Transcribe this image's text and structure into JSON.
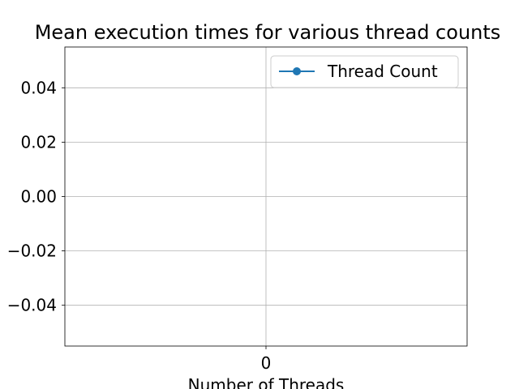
{
  "chart_data": {
    "type": "line",
    "title": "Mean execution times for various thread counts",
    "xlabel": "Number of Threads",
    "ylabel": "",
    "x_ticks": [
      "0"
    ],
    "y_ticks": [
      "0.04",
      "0.02",
      "0.00",
      "−0.02",
      "−0.04"
    ],
    "ylim": [
      -0.055,
      0.055
    ],
    "grid": true,
    "legend_position": "top-right",
    "series": [
      {
        "name": "Thread Count",
        "x": [],
        "values": [],
        "color": "#1f77b4",
        "marker": "circle"
      }
    ]
  }
}
